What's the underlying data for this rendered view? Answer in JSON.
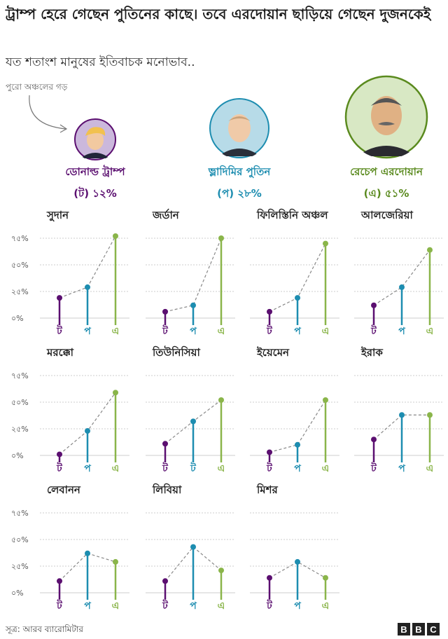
{
  "header": {
    "title": "ট্রাম্প হেরে গেছেন পুতিনের কাছে। তবে এরদোয়ান ছাড়িয়ে গেছেন দুজনকেই",
    "subtitle": "যত শতাংশ মানুষের ইতিবাচক মনোভাব..",
    "average_note": "পুরো অঞ্চলের গড়"
  },
  "leaders": [
    {
      "name": "ডোনাল্ড ট্রাম্প",
      "pct_label": "(ট) ১২%",
      "color": "#5b0f70",
      "portrait_bg": "#cbb8dc",
      "skin": "#f2c9a0",
      "hair": "#f2c14e"
    },
    {
      "name": "ভ্লাদিমির পুতিন",
      "pct_label": "(প) ২৮%",
      "color": "#1d8db0",
      "portrait_bg": "#b7dbe8",
      "skin": "#f0caa8",
      "hair": "#c9a27a"
    },
    {
      "name": "রেচেপ এরদোয়ান",
      "pct_label": "(এ) ৫১%",
      "color": "#5a8a1e",
      "portrait_bg": "#d8e8c4",
      "skin": "#e0b184",
      "hair": "#555555"
    }
  ],
  "colors": {
    "trump": "#5b0f70",
    "putin": "#1d8db0",
    "erdogan": "#8ab54a",
    "grid": "#cccccc",
    "connector": "#888888"
  },
  "chart_data": [
    {
      "type": "lollipop",
      "title": "সুদান",
      "categories": [
        "ট",
        "প",
        "এ"
      ],
      "values": [
        19,
        29,
        77
      ],
      "ylim": [
        0,
        75
      ],
      "yticks": [
        "৭৫%",
        "৫০%",
        "২৫%",
        "০%"
      ]
    },
    {
      "type": "lollipop",
      "title": "জর্ডান",
      "categories": [
        "ট",
        "প",
        "এ"
      ],
      "values": [
        6,
        12,
        75
      ],
      "ylim": [
        0,
        75
      ]
    },
    {
      "type": "lollipop",
      "title": "ফিলিস্তিনি অঞ্চল",
      "categories": [
        "ট",
        "প",
        "এ"
      ],
      "values": [
        6,
        19,
        70
      ],
      "ylim": [
        0,
        75
      ]
    },
    {
      "type": "lollipop",
      "title": "আলজেরিয়া",
      "categories": [
        "ট",
        "প",
        "এ"
      ],
      "values": [
        12,
        29,
        64
      ],
      "ylim": [
        0,
        75
      ]
    },
    {
      "type": "lollipop",
      "title": "মরক্কো",
      "categories": [
        "ট",
        "প",
        "এ"
      ],
      "values": [
        1,
        23,
        59
      ],
      "ylim": [
        0,
        75
      ],
      "yticks": [
        "৭৫%",
        "৫০%",
        "২৫%",
        "০%"
      ]
    },
    {
      "type": "lollipop",
      "title": "তিউনিসিয়া",
      "categories": [
        "ট",
        "ট",
        "এ"
      ],
      "values": [
        11,
        32,
        52
      ],
      "ylim": [
        0,
        75
      ]
    },
    {
      "type": "lollipop",
      "title": "ইয়েমেন",
      "categories": [
        "ট",
        "প",
        "এ"
      ],
      "values": [
        3,
        10,
        52
      ],
      "ylim": [
        0,
        75
      ]
    },
    {
      "type": "lollipop",
      "title": "ইরাক",
      "categories": [
        "ট",
        "প",
        "এ"
      ],
      "values": [
        15,
        38,
        38
      ],
      "ylim": [
        0,
        75
      ]
    },
    {
      "type": "lollipop",
      "title": "লেবানন",
      "categories": [
        "ট",
        "প",
        "এ"
      ],
      "values": [
        11,
        37,
        29
      ],
      "ylim": [
        0,
        75
      ],
      "yticks": [
        "৭৫%",
        "৫০%",
        "২৫%",
        "০%"
      ]
    },
    {
      "type": "lollipop",
      "title": "লিবিয়া",
      "categories": [
        "ট",
        "প",
        "এ"
      ],
      "values": [
        11,
        43,
        21
      ],
      "ylim": [
        0,
        75
      ]
    },
    {
      "type": "lollipop",
      "title": "মিশর",
      "categories": [
        "ট",
        "প",
        "এ"
      ],
      "values": [
        14,
        29,
        14
      ],
      "ylim": [
        0,
        75
      ]
    }
  ],
  "footer": {
    "source": "সূত্র: আরব ব্যারোমিটার",
    "logo_letters": [
      "B",
      "B",
      "C"
    ]
  }
}
